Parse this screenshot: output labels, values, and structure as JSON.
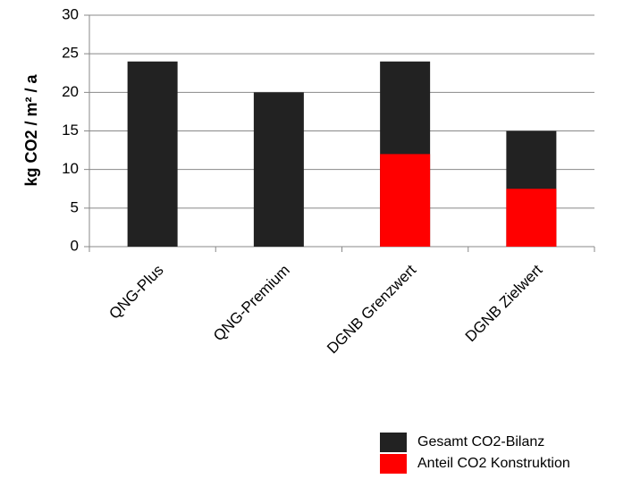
{
  "chart_data": {
    "type": "bar",
    "overlap": true,
    "y_label": "kg CO2  / m² / a",
    "categories": [
      "QNG-Plus",
      "QNG-Premium",
      "DGNB Grenzwert",
      "DGNB Zielwert"
    ],
    "series": [
      {
        "name": "Gesamt CO2-Bilanz",
        "color": "#222222",
        "values": [
          24,
          20,
          24,
          15
        ]
      },
      {
        "name": "Anteil CO2 Konstruktion",
        "color": "#ff0000",
        "values": [
          null,
          null,
          12,
          7.5
        ]
      }
    ],
    "ylim": [
      0,
      30
    ],
    "yticks": [
      0,
      5,
      10,
      15,
      20,
      25,
      30
    ],
    "grid": true,
    "legend": "bottom-right"
  }
}
